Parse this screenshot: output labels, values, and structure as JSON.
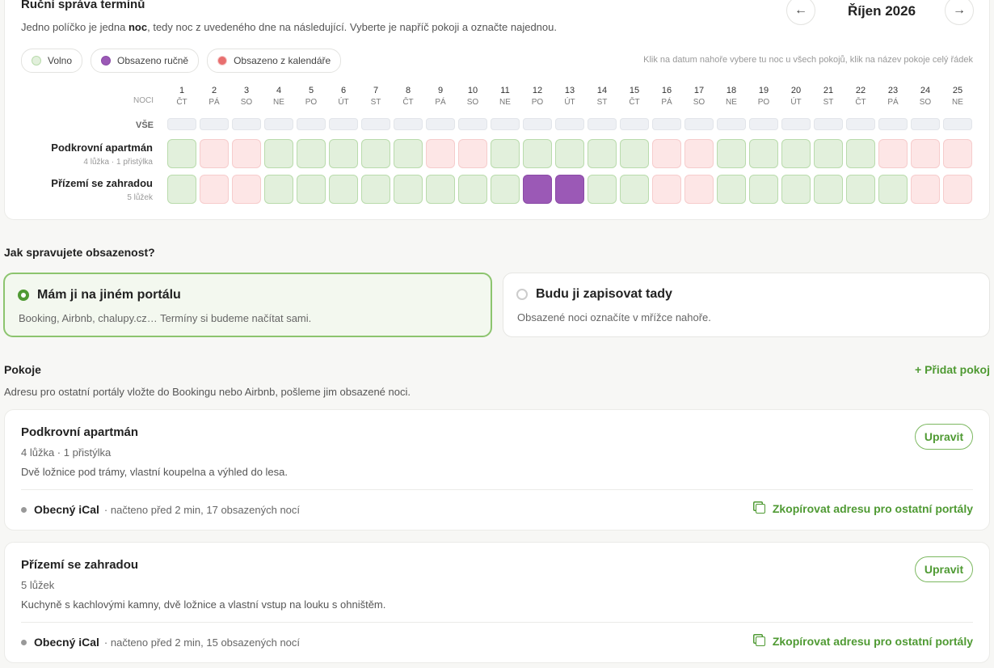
{
  "calendar": {
    "title": "Ruční správa termínů",
    "description": {
      "before": "Jedno políčko je jedna ",
      "bold": "noc",
      "after": ", tedy noc z uvedeného dne na následující. Vyberte je napříč pokoji a označte najednou."
    },
    "nav": {
      "prev": "←",
      "month": "Říjen 2026",
      "next": "→"
    },
    "legend": [
      {
        "label": "Volno",
        "fill": "#e2f0dc",
        "border": "#b9dbac",
        "dot": "#e2f0dc"
      },
      {
        "label": "Obsazeno ručně",
        "fill": "#9b59b6",
        "border": "#8a4aa6",
        "dot": "#9b59b6"
      },
      {
        "label": "Obsazeno z kalendáře",
        "fill": "#fde6e6",
        "border": "#f6cccc",
        "dot": "#e86f6f"
      }
    ],
    "hint": "Klik na datum nahoře vybere tu noc u všech pokojů, klik na název pokoje celý řádek",
    "nights_label": "NOCI",
    "all_label": "VŠE",
    "days": [
      {
        "day": 1,
        "weekday": "ČT"
      },
      {
        "day": 2,
        "weekday": "PÁ"
      },
      {
        "day": 3,
        "weekday": "SO"
      },
      {
        "day": 4,
        "weekday": "NE"
      },
      {
        "day": 5,
        "weekday": "PO"
      },
      {
        "day": 6,
        "weekday": "ÚT"
      },
      {
        "day": 7,
        "weekday": "ST"
      },
      {
        "day": 8,
        "weekday": "ČT"
      },
      {
        "day": 9,
        "weekday": "PÁ"
      },
      {
        "day": 10,
        "weekday": "SO"
      },
      {
        "day": 11,
        "weekday": "NE"
      },
      {
        "day": 12,
        "weekday": "PO"
      },
      {
        "day": 13,
        "weekday": "ÚT"
      },
      {
        "day": 14,
        "weekday": "ST"
      },
      {
        "day": 15,
        "weekday": "ČT"
      },
      {
        "day": 16,
        "weekday": "PÁ"
      },
      {
        "day": 17,
        "weekday": "SO"
      },
      {
        "day": 18,
        "weekday": "NE"
      },
      {
        "day": 19,
        "weekday": "PO"
      },
      {
        "day": 20,
        "weekday": "ÚT"
      },
      {
        "day": 21,
        "weekday": "ST"
      },
      {
        "day": 22,
        "weekday": "ČT"
      },
      {
        "day": 23,
        "weekday": "PÁ"
      },
      {
        "day": 24,
        "weekday": "SO"
      },
      {
        "day": 25,
        "weekday": "NE"
      }
    ],
    "rows": [
      {
        "name": "Podkrovní apartmán",
        "meta": "4 lůžka · 1 přistýlka",
        "cells": [
          "Volno",
          "Obsazeno z kalendáře",
          "Obsazeno z kalendáře",
          "Volno",
          "Volno",
          "Volno",
          "Volno",
          "Volno",
          "Obsazeno z kalendáře",
          "Obsazeno z kalendáře",
          "Volno",
          "Volno",
          "Volno",
          "Volno",
          "Volno",
          "Obsazeno z kalendáře",
          "Obsazeno z kalendáře",
          "Volno",
          "Volno",
          "Volno",
          "Volno",
          "Volno",
          "Obsazeno z kalendáře",
          "Obsazeno z kalendáře",
          "Obsazeno z kalendáře"
        ]
      },
      {
        "name": "Přízemí se zahradou",
        "meta": "5 lůžek",
        "cells": [
          "Volno",
          "Obsazeno z kalendáře",
          "Obsazeno z kalendáře",
          "Volno",
          "Volno",
          "Volno",
          "Volno",
          "Volno",
          "Volno",
          "Volno",
          "Volno",
          "Obsazeno ručně",
          "Obsazeno ručně",
          "Volno",
          "Volno",
          "Obsazeno z kalendáře",
          "Obsazeno z kalendáře",
          "Volno",
          "Volno",
          "Volno",
          "Volno",
          "Volno",
          "Volno",
          "Obsazeno z kalendáře",
          "Obsazeno z kalendáře"
        ]
      }
    ]
  },
  "occupancy": {
    "question": "Jak spravujete obsazenost?",
    "options": [
      {
        "title": "Mám ji na jiném portálu",
        "text": "Booking, Airbnb, chalupy.cz… Termíny si budeme načítat sami.",
        "selected": true
      },
      {
        "title": "Budu ji zapisovat tady",
        "text": "Obsazené noci označíte v mřížce nahoře.",
        "selected": false
      }
    ]
  },
  "rooms": {
    "title": "Pokoje",
    "add": "+ Přidat pokoj",
    "subtitle": "Adresu pro ostatní portály vložte do Bookingu nebo Airbnb, pošleme jim obsazené noci.",
    "items": [
      {
        "name": "Podkrovní apartmán",
        "meta": "4 lůžka · 1 přistýlka",
        "description": "Dvě ložnice pod trámy, vlastní koupelna a výhled do lesa.",
        "edit": "Upravit",
        "ical": "Obecný iCal",
        "status": "· načteno před 2 min, 17 obsazených nocí",
        "copy": "Zkopírovat adresu pro ostatní portály"
      },
      {
        "name": "Přízemí se zahradou",
        "meta": "5 lůžek",
        "description": "Kuchyně s kachlovými kamny, dvě ložnice a vlastní vstup na louku s ohništěm.",
        "edit": "Upravit",
        "ical": "Obecný iCal",
        "status": "· načteno před 2 min, 15 obsazených nocí",
        "copy": "Zkopírovat adresu pro ostatní portály"
      }
    ]
  }
}
